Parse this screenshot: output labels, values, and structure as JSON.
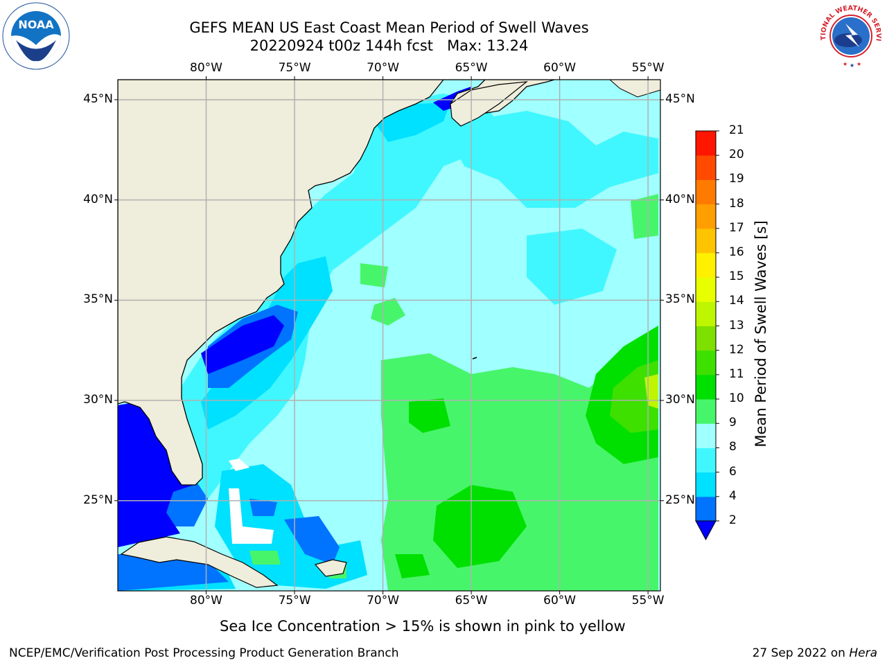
{
  "header": {
    "title_line1": "GEFS MEAN US East Coast Mean Period of Swell Waves",
    "title_line2": "20220924 t00z 144h fcst   Max: 13.24"
  },
  "map": {
    "lon_ticks": [
      {
        "lon": -80,
        "label": "80°W"
      },
      {
        "lon": -75,
        "label": "75°W"
      },
      {
        "lon": -70,
        "label": "70°W"
      },
      {
        "lon": -65,
        "label": "65°W"
      },
      {
        "lon": -60,
        "label": "60°W"
      },
      {
        "lon": -55,
        "label": "55°W"
      }
    ],
    "lat_ticks": [
      {
        "lat": 45,
        "label": "45°N"
      },
      {
        "lat": 40,
        "label": "40°N"
      },
      {
        "lat": 35,
        "label": "35°N"
      },
      {
        "lat": 30,
        "label": "30°N"
      },
      {
        "lat": 25,
        "label": "25°N"
      }
    ],
    "lon_range": [
      -85,
      -54.3
    ],
    "lat_range": [
      20.5,
      46
    ],
    "max_value": 13.24,
    "ocean_fill_description_colors": {
      "land": "#efeddb",
      "grid": "#b0b0b0"
    }
  },
  "colorbar": {
    "label": "Mean Period of Swell Waves [s]",
    "ticks": [
      "2",
      "4",
      "6",
      "8",
      "9",
      "10",
      "11",
      "12",
      "13",
      "14",
      "15",
      "16",
      "17",
      "18",
      "19",
      "20",
      "21"
    ],
    "under_color": "#0000ff",
    "colors": [
      "#0073ff",
      "#00e0ff",
      "#40f7ff",
      "#a0ffff",
      "#47f56a",
      "#00e000",
      "#3ee000",
      "#7de000",
      "#bef500",
      "#e8ff00",
      "#fff000",
      "#ffc400",
      "#ff9e00",
      "#ff7b00",
      "#ff4a00",
      "#ff1600"
    ]
  },
  "notes": {
    "sea_ice": "Sea Ice Concentration > 15% is shown in pink to yellow"
  },
  "footer": {
    "left": "NCEP/EMC/Verification Post Processing Product Generation Branch",
    "date": "27 Sep 2022 on ",
    "host": "Hera"
  },
  "logos": {
    "noaa_text": "NOAA",
    "nws_text": "NATIONAL WEATHER SERVICE"
  }
}
